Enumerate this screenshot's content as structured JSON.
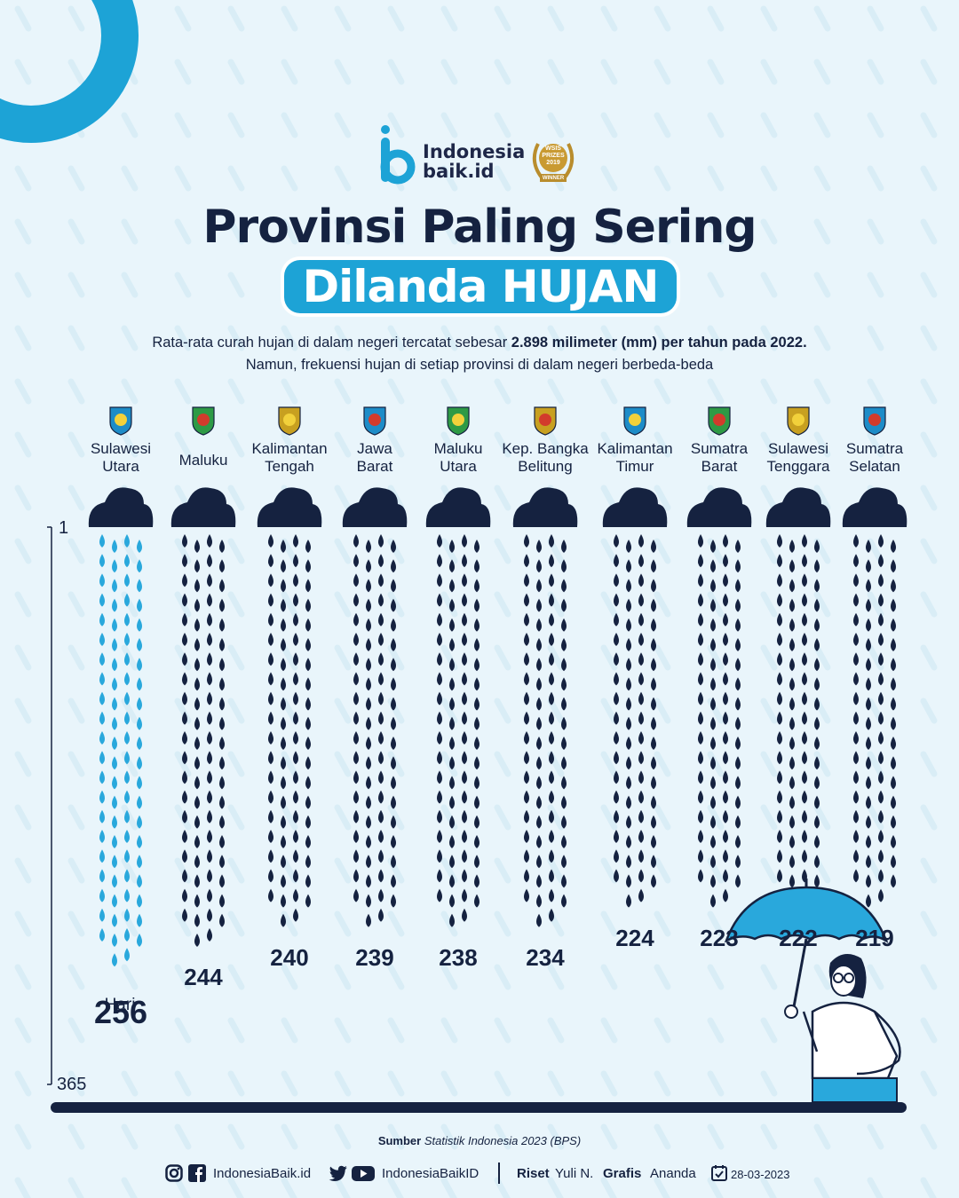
{
  "brand": {
    "name_line1": "Indonesia",
    "name_line2": "baik.id",
    "award": [
      "WSIS",
      "PRIZES",
      "2019",
      "WINNER"
    ]
  },
  "title": {
    "line1": "Provinsi Paling Sering",
    "line2": "Dilanda HUJAN"
  },
  "intro": {
    "line1_pre": "Rata-rata curah hujan di dalam negeri tercatat sebesar ",
    "line1_bold": "2.898 milimeter (mm) per tahun pada 2022.",
    "line2": "Namun, frekuensi hujan di setiap provinsi di dalam negeri berbeda-beda"
  },
  "colors": {
    "accent": "#1da3d6",
    "dark": "#152240",
    "highlight_drop": "#29a8dc",
    "background": "#e9f5fb"
  },
  "chart_data": {
    "type": "bar",
    "categories": [
      "Sulawesi Utara",
      "Maluku",
      "Kalimantan Tengah",
      "Jawa Barat",
      "Maluku Utara",
      "Kep. Bangka Belitung",
      "Kalimantan Timur",
      "Sumatra Barat",
      "Sulawesi Tenggara",
      "Sumatra Selatan"
    ],
    "label_lines": [
      [
        "Sulawesi",
        "Utara"
      ],
      [
        "Maluku"
      ],
      [
        "Kalimantan",
        "Tengah"
      ],
      [
        "Jawa",
        "Barat"
      ],
      [
        "Maluku",
        "Utara"
      ],
      [
        "Kep. Bangka",
        "Belitung"
      ],
      [
        "Kalimantan",
        "Timur"
      ],
      [
        "Sumatra",
        "Barat"
      ],
      [
        "Sulawesi",
        "Tenggara"
      ],
      [
        "Sumatra",
        "Selatan"
      ]
    ],
    "values": [
      256,
      244,
      240,
      239,
      238,
      234,
      224,
      223,
      222,
      219
    ],
    "unit": "Hari",
    "axis": {
      "min_label": "1",
      "max_label": "365",
      "min": 1,
      "max": 365
    },
    "highlight_index": 0
  },
  "footer": {
    "source_label": "Sumber",
    "source_text": "Statistik Indonesia 2023 (BPS)",
    "handle1": "IndonesiaBaik.id",
    "handle2": "IndonesiaBaikID",
    "riset_label": "Riset",
    "riset_name": "Yuli N.",
    "grafis_label": "Grafis",
    "grafis_name": "Ananda",
    "date": "28-03-2023"
  }
}
